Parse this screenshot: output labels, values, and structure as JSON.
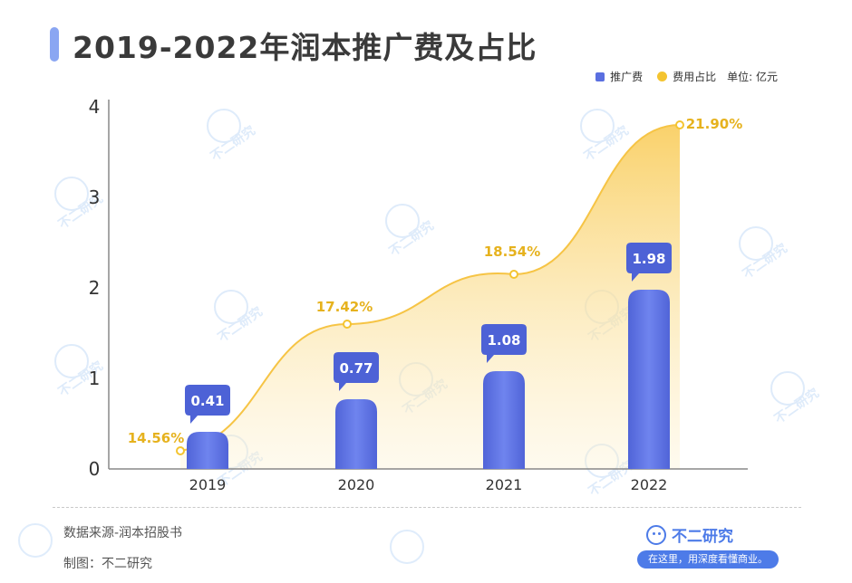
{
  "title": "2019-2022年润本推广费及占比",
  "legend": {
    "series1": "推广费",
    "series2": "费用占比",
    "unit": "单位: 亿元"
  },
  "colors": {
    "bar": "#5a6fe0",
    "bar_light": "#7b8ef0",
    "line": "#f4c430",
    "area_top": "#f9d16a",
    "label_text": "#e6b21e"
  },
  "chart_data": {
    "type": "bar",
    "categories": [
      "2019",
      "2020",
      "2021",
      "2022"
    ],
    "series": [
      {
        "name": "推广费",
        "type": "bar",
        "values": [
          0.41,
          0.77,
          1.08,
          1.98
        ],
        "labels": [
          "0.41",
          "0.77",
          "1.08",
          "1.98"
        ]
      },
      {
        "name": "费用占比",
        "type": "area",
        "values": [
          14.56,
          17.42,
          18.54,
          21.9
        ],
        "labels": [
          "14.56%",
          "17.42%",
          "18.54%",
          "21.90%"
        ],
        "plot_values": [
          0.2,
          1.6,
          2.15,
          3.8
        ]
      }
    ],
    "yticks": [
      "0",
      "1",
      "2",
      "3",
      "4"
    ],
    "ylim": [
      0,
      4
    ],
    "grid": false,
    "legend_position": "top-right"
  },
  "footer": {
    "source": "数据来源-润本招股书",
    "maker": "制图：不二研究"
  },
  "brand": {
    "name": "不二研究",
    "tagline": "在这里，用深度看懂商业。"
  },
  "watermark": "不二研究"
}
